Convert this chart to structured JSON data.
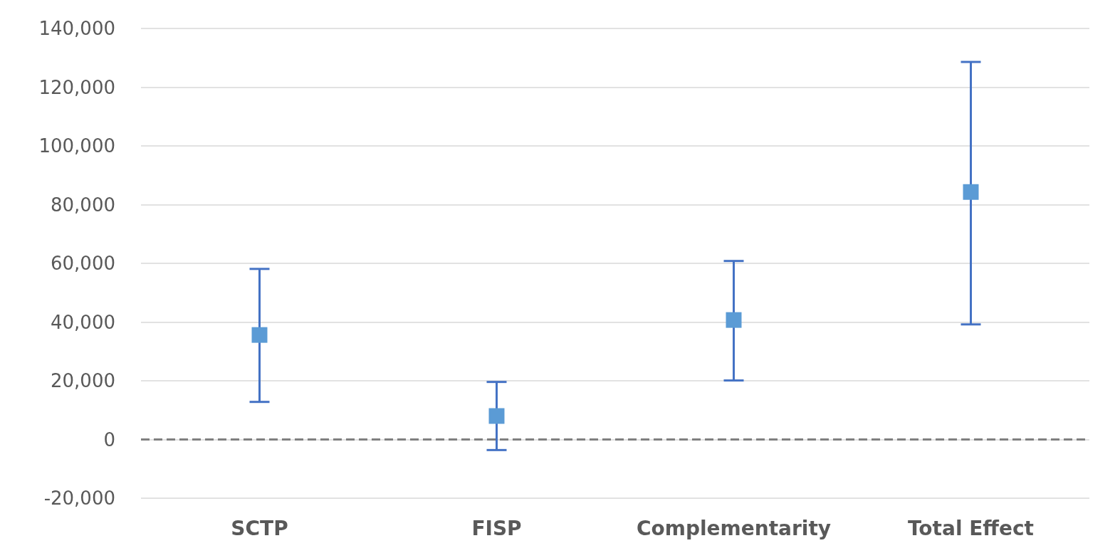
{
  "chart_data": {
    "type": "scatter",
    "categories": [
      "SCTP",
      "FISP",
      "Complementarity",
      "Total Effect"
    ],
    "series": [
      {
        "color": "#5b9bd5",
        "values": [
          35600,
          8000,
          40700,
          84300
        ],
        "errors": [
          [
            12800,
            58100
          ],
          [
            -3600,
            19600
          ],
          [
            20100,
            60800
          ],
          [
            39200,
            128600
          ]
        ]
      }
    ],
    "ylim": [
      -20000,
      140000
    ],
    "yticks": [
      {
        "value": -20000,
        "label": "-20,000"
      },
      {
        "value": 0,
        "label": "0"
      },
      {
        "value": 20000,
        "label": "20,000"
      },
      {
        "value": 40000,
        "label": "40,000"
      },
      {
        "value": 60000,
        "label": "60,000"
      },
      {
        "value": 80000,
        "label": "80,000"
      },
      {
        "value": 100000,
        "label": "100,000"
      },
      {
        "value": 120000,
        "label": "120,000"
      },
      {
        "value": 140000,
        "label": "140,000"
      }
    ],
    "grid": "y",
    "marker": "square",
    "ref_lines": [
      {
        "axis": "y",
        "value": 0,
        "label": null,
        "color": "#808080",
        "line_style": "dashed"
      }
    ]
  }
}
